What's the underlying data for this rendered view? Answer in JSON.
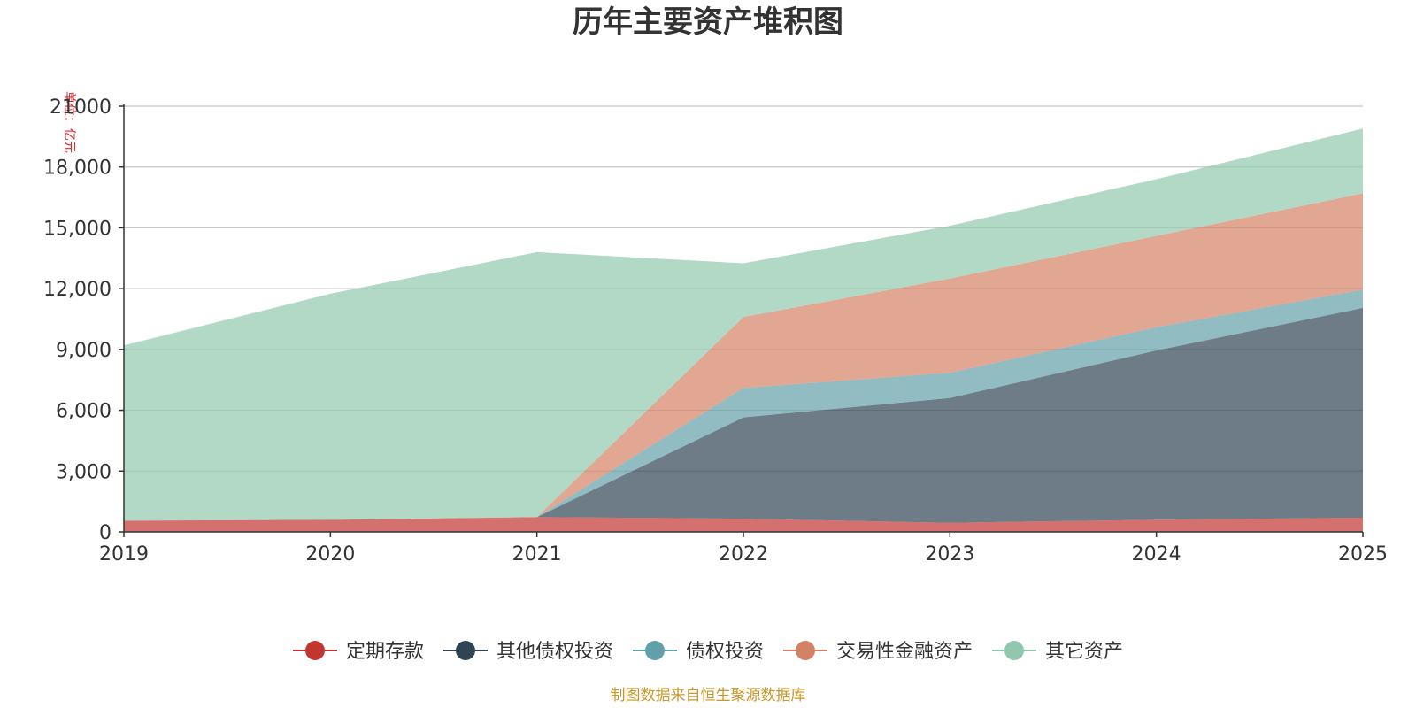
{
  "chart_data": {
    "type": "area",
    "stacked": true,
    "title": "历年主要资产堆积图",
    "ylabel": "单位：亿元",
    "xlabel": "",
    "x": [
      "2019",
      "2020",
      "2021",
      "2022",
      "2023",
      "2024",
      "2025"
    ],
    "ylim": [
      0,
      21000
    ],
    "yticks": [
      0,
      3000,
      6000,
      9000,
      12000,
      15000,
      18000,
      21000
    ],
    "ytick_labels": [
      "0",
      "3,000",
      "6,000",
      "9,000",
      "12,000",
      "15,000",
      "18,000",
      "21000"
    ],
    "grid": true,
    "legend_position": "bottom",
    "series": [
      {
        "name": "定期存款",
        "color": "#c23531",
        "values": [
          550,
          600,
          730,
          650,
          450,
          600,
          700
        ]
      },
      {
        "name": "其他债权投资",
        "color": "#2f4554",
        "values": [
          0,
          0,
          0,
          5000,
          6150,
          8350,
          10350
        ]
      },
      {
        "name": "债权投资",
        "color": "#61a0a8",
        "values": [
          0,
          0,
          0,
          1450,
          1250,
          1150,
          900
        ]
      },
      {
        "name": "交易性金融资产",
        "color": "#d48265",
        "values": [
          0,
          0,
          0,
          3500,
          4650,
          4500,
          4750
        ]
      },
      {
        "name": "其它资产",
        "color": "#91c7ae",
        "values": [
          8650,
          11150,
          13070,
          2650,
          2600,
          2800,
          3200
        ]
      }
    ]
  },
  "source_note": "制图数据来自恒生聚源数据库"
}
